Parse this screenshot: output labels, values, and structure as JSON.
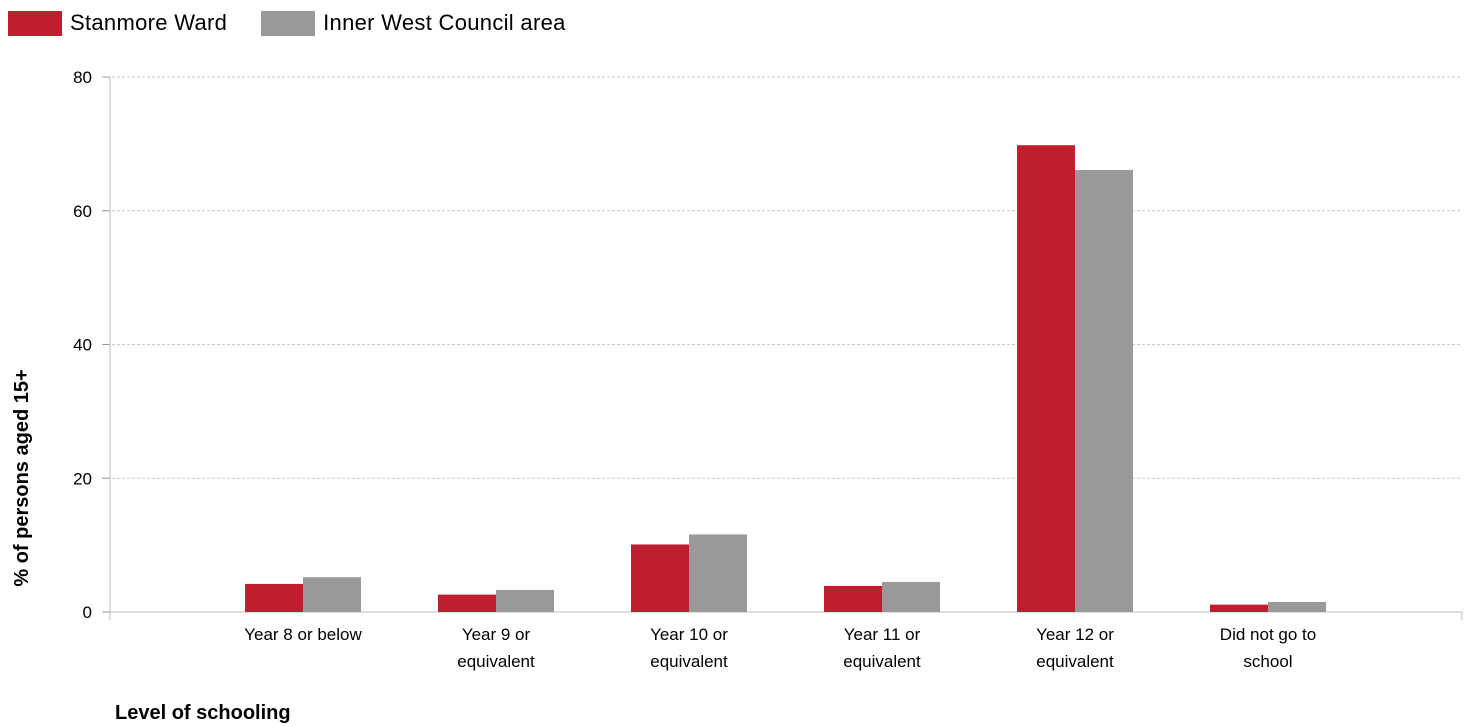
{
  "chart_data": {
    "type": "bar",
    "categories": [
      [
        "Year 8 or below"
      ],
      [
        "Year 9 or",
        "equivalent"
      ],
      [
        "Year 10 or",
        "equivalent"
      ],
      [
        "Year 11 or",
        "equivalent"
      ],
      [
        "Year 12 or",
        "equivalent"
      ],
      [
        "Did not go to",
        "school"
      ]
    ],
    "series": [
      {
        "name": "Stanmore Ward",
        "color": "#be1e2d",
        "values": [
          4.2,
          2.6,
          10.1,
          3.9,
          69.8,
          1.1
        ]
      },
      {
        "name": "Inner West Council area",
        "color": "#999999",
        "values": [
          5.2,
          3.3,
          11.6,
          4.5,
          66.1,
          1.5
        ]
      }
    ],
    "xlabel": "Level of schooling",
    "ylabel": "% of persons aged 15+",
    "ylim": [
      0,
      80
    ],
    "yticks": [
      0,
      20,
      40,
      60,
      80
    ],
    "grid": true,
    "legend_position": "top-left"
  }
}
